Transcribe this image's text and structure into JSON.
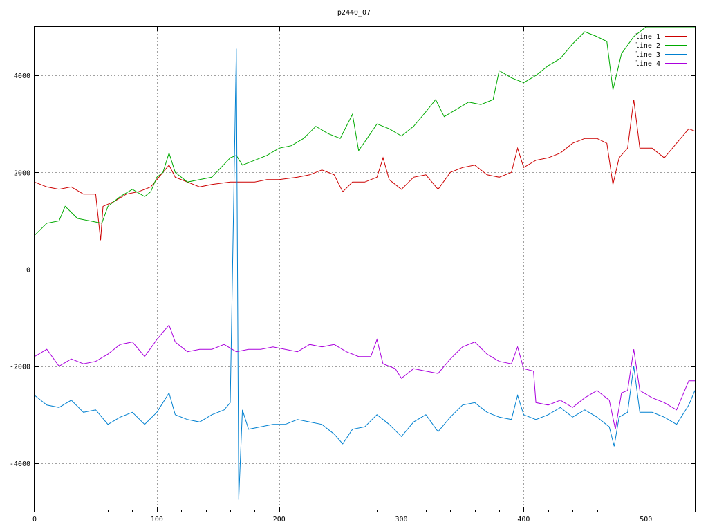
{
  "chart_data": {
    "type": "line",
    "title": "p2440_07",
    "xlabel": "",
    "ylabel": "",
    "xlim": [
      0,
      540
    ],
    "ylim": [
      -5000,
      5000
    ],
    "xticks": [
      0,
      100,
      200,
      300,
      400,
      500
    ],
    "yticks": [
      -4000,
      -2000,
      0,
      2000,
      4000
    ],
    "ytick_labels": [
      "-4000",
      "-2000",
      "0",
      "2000",
      "4000"
    ],
    "grid": true,
    "legend_position": "top-right",
    "series": [
      {
        "name": "line 1",
        "color": "#cc0000",
        "points": [
          [
            0,
            1800
          ],
          [
            10,
            1700
          ],
          [
            20,
            1650
          ],
          [
            30,
            1700
          ],
          [
            40,
            1550
          ],
          [
            50,
            1550
          ],
          [
            54,
            600
          ],
          [
            56,
            1300
          ],
          [
            65,
            1400
          ],
          [
            75,
            1550
          ],
          [
            85,
            1600
          ],
          [
            95,
            1700
          ],
          [
            105,
            2000
          ],
          [
            110,
            2150
          ],
          [
            115,
            1900
          ],
          [
            125,
            1800
          ],
          [
            135,
            1700
          ],
          [
            145,
            1750
          ],
          [
            160,
            1800
          ],
          [
            170,
            1800
          ],
          [
            180,
            1800
          ],
          [
            190,
            1850
          ],
          [
            200,
            1850
          ],
          [
            215,
            1900
          ],
          [
            225,
            1950
          ],
          [
            235,
            2050
          ],
          [
            245,
            1950
          ],
          [
            252,
            1600
          ],
          [
            260,
            1800
          ],
          [
            270,
            1800
          ],
          [
            280,
            1900
          ],
          [
            285,
            2300
          ],
          [
            290,
            1850
          ],
          [
            300,
            1650
          ],
          [
            310,
            1900
          ],
          [
            320,
            1950
          ],
          [
            330,
            1650
          ],
          [
            340,
            2000
          ],
          [
            350,
            2100
          ],
          [
            360,
            2150
          ],
          [
            370,
            1950
          ],
          [
            380,
            1900
          ],
          [
            390,
            2000
          ],
          [
            395,
            2500
          ],
          [
            400,
            2100
          ],
          [
            410,
            2250
          ],
          [
            420,
            2300
          ],
          [
            430,
            2400
          ],
          [
            440,
            2600
          ],
          [
            450,
            2700
          ],
          [
            460,
            2700
          ],
          [
            468,
            2600
          ],
          [
            473,
            1750
          ],
          [
            478,
            2300
          ],
          [
            485,
            2500
          ],
          [
            490,
            3500
          ],
          [
            495,
            2500
          ],
          [
            505,
            2500
          ],
          [
            515,
            2300
          ],
          [
            525,
            2600
          ],
          [
            535,
            2900
          ],
          [
            540,
            2850
          ]
        ]
      },
      {
        "name": "line 2",
        "color": "#00aa00",
        "points": [
          [
            0,
            700
          ],
          [
            10,
            950
          ],
          [
            20,
            1000
          ],
          [
            25,
            1300
          ],
          [
            35,
            1050
          ],
          [
            45,
            1000
          ],
          [
            55,
            950
          ],
          [
            60,
            1300
          ],
          [
            70,
            1500
          ],
          [
            80,
            1650
          ],
          [
            90,
            1500
          ],
          [
            95,
            1600
          ],
          [
            100,
            1900
          ],
          [
            105,
            2000
          ],
          [
            110,
            2400
          ],
          [
            115,
            2000
          ],
          [
            125,
            1800
          ],
          [
            135,
            1850
          ],
          [
            145,
            1900
          ],
          [
            160,
            2300
          ],
          [
            165,
            2350
          ],
          [
            170,
            2150
          ],
          [
            180,
            2250
          ],
          [
            190,
            2350
          ],
          [
            200,
            2500
          ],
          [
            210,
            2550
          ],
          [
            220,
            2700
          ],
          [
            230,
            2950
          ],
          [
            240,
            2800
          ],
          [
            250,
            2700
          ],
          [
            260,
            3200
          ],
          [
            265,
            2450
          ],
          [
            272,
            2700
          ],
          [
            280,
            3000
          ],
          [
            290,
            2900
          ],
          [
            300,
            2750
          ],
          [
            310,
            2950
          ],
          [
            320,
            3250
          ],
          [
            328,
            3500
          ],
          [
            335,
            3150
          ],
          [
            345,
            3300
          ],
          [
            355,
            3450
          ],
          [
            365,
            3400
          ],
          [
            375,
            3500
          ],
          [
            380,
            4100
          ],
          [
            390,
            3950
          ],
          [
            400,
            3850
          ],
          [
            410,
            4000
          ],
          [
            420,
            4200
          ],
          [
            430,
            4350
          ],
          [
            440,
            4650
          ],
          [
            450,
            4900
          ],
          [
            460,
            4800
          ],
          [
            468,
            4700
          ],
          [
            473,
            3700
          ],
          [
            480,
            4450
          ],
          [
            490,
            4800
          ],
          [
            500,
            5000
          ],
          [
            520,
            5000
          ],
          [
            540,
            5000
          ]
        ]
      },
      {
        "name": "line 3",
        "color": "#0080d0",
        "points": [
          [
            0,
            -2600
          ],
          [
            10,
            -2800
          ],
          [
            20,
            -2850
          ],
          [
            30,
            -2700
          ],
          [
            40,
            -2950
          ],
          [
            50,
            -2900
          ],
          [
            60,
            -3200
          ],
          [
            70,
            -3050
          ],
          [
            80,
            -2950
          ],
          [
            90,
            -3200
          ],
          [
            100,
            -2950
          ],
          [
            110,
            -2550
          ],
          [
            115,
            -3000
          ],
          [
            125,
            -3100
          ],
          [
            135,
            -3150
          ],
          [
            145,
            -3000
          ],
          [
            155,
            -2900
          ],
          [
            160,
            -2750
          ],
          [
            165,
            4550
          ],
          [
            167,
            -4750
          ],
          [
            170,
            -2900
          ],
          [
            175,
            -3300
          ],
          [
            185,
            -3250
          ],
          [
            195,
            -3200
          ],
          [
            205,
            -3200
          ],
          [
            215,
            -3100
          ],
          [
            225,
            -3150
          ],
          [
            235,
            -3200
          ],
          [
            245,
            -3400
          ],
          [
            252,
            -3600
          ],
          [
            260,
            -3300
          ],
          [
            270,
            -3250
          ],
          [
            280,
            -3000
          ],
          [
            290,
            -3200
          ],
          [
            300,
            -3450
          ],
          [
            310,
            -3150
          ],
          [
            320,
            -3000
          ],
          [
            330,
            -3350
          ],
          [
            340,
            -3050
          ],
          [
            350,
            -2800
          ],
          [
            360,
            -2750
          ],
          [
            370,
            -2950
          ],
          [
            380,
            -3050
          ],
          [
            390,
            -3100
          ],
          [
            395,
            -2600
          ],
          [
            400,
            -3000
          ],
          [
            410,
            -3100
          ],
          [
            420,
            -3000
          ],
          [
            430,
            -2850
          ],
          [
            440,
            -3050
          ],
          [
            450,
            -2900
          ],
          [
            460,
            -3050
          ],
          [
            470,
            -3250
          ],
          [
            474,
            -3650
          ],
          [
            478,
            -3050
          ],
          [
            485,
            -2950
          ],
          [
            490,
            -2000
          ],
          [
            495,
            -2950
          ],
          [
            505,
            -2950
          ],
          [
            515,
            -3050
          ],
          [
            525,
            -3200
          ],
          [
            535,
            -2800
          ],
          [
            540,
            -2500
          ]
        ]
      },
      {
        "name": "line 4",
        "color": "#aa00dd",
        "points": [
          [
            0,
            -1800
          ],
          [
            10,
            -1650
          ],
          [
            20,
            -2000
          ],
          [
            30,
            -1850
          ],
          [
            40,
            -1950
          ],
          [
            50,
            -1900
          ],
          [
            60,
            -1750
          ],
          [
            70,
            -1550
          ],
          [
            80,
            -1500
          ],
          [
            90,
            -1800
          ],
          [
            100,
            -1450
          ],
          [
            110,
            -1150
          ],
          [
            115,
            -1500
          ],
          [
            125,
            -1700
          ],
          [
            135,
            -1650
          ],
          [
            145,
            -1650
          ],
          [
            155,
            -1550
          ],
          [
            165,
            -1700
          ],
          [
            175,
            -1650
          ],
          [
            185,
            -1650
          ],
          [
            195,
            -1600
          ],
          [
            205,
            -1650
          ],
          [
            215,
            -1700
          ],
          [
            225,
            -1550
          ],
          [
            235,
            -1600
          ],
          [
            245,
            -1550
          ],
          [
            255,
            -1700
          ],
          [
            265,
            -1800
          ],
          [
            275,
            -1800
          ],
          [
            280,
            -1450
          ],
          [
            285,
            -1950
          ],
          [
            295,
            -2050
          ],
          [
            300,
            -2250
          ],
          [
            310,
            -2050
          ],
          [
            320,
            -2100
          ],
          [
            330,
            -2150
          ],
          [
            340,
            -1850
          ],
          [
            350,
            -1600
          ],
          [
            360,
            -1500
          ],
          [
            370,
            -1750
          ],
          [
            380,
            -1900
          ],
          [
            390,
            -1950
          ],
          [
            395,
            -1600
          ],
          [
            400,
            -2050
          ],
          [
            408,
            -2100
          ],
          [
            410,
            -2750
          ],
          [
            420,
            -2800
          ],
          [
            430,
            -2700
          ],
          [
            440,
            -2850
          ],
          [
            450,
            -2650
          ],
          [
            460,
            -2500
          ],
          [
            470,
            -2700
          ],
          [
            475,
            -3300
          ],
          [
            480,
            -2550
          ],
          [
            485,
            -2500
          ],
          [
            490,
            -1650
          ],
          [
            495,
            -2500
          ],
          [
            505,
            -2650
          ],
          [
            515,
            -2750
          ],
          [
            525,
            -2900
          ],
          [
            535,
            -2300
          ],
          [
            540,
            -2300
          ]
        ]
      }
    ]
  }
}
